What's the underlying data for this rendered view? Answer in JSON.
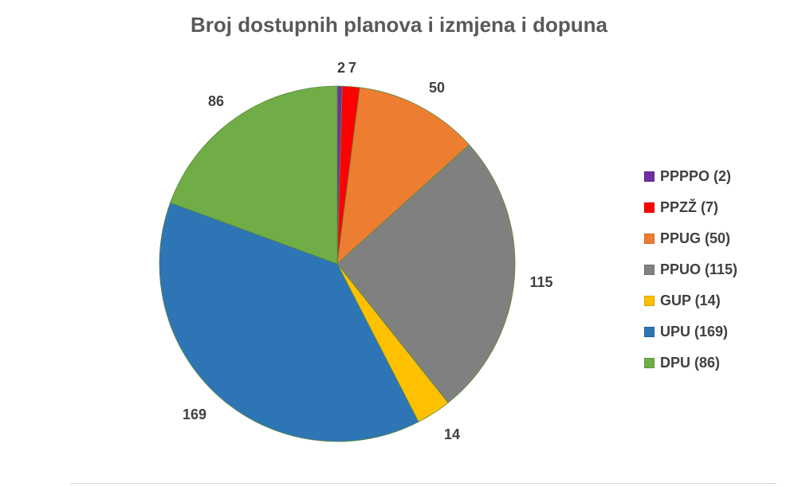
{
  "chart_data": {
    "type": "pie",
    "title": "Broj dostupnih planova i izmjena i dopuna",
    "start_angle_deg": 0,
    "direction": "clockwise",
    "legend_position": "right",
    "slices": [
      {
        "label": "PPPPO",
        "value": 2,
        "data_label": "2",
        "legend_text": "PPPPO (2)",
        "color": "#7030A0"
      },
      {
        "label": "PPZŽ",
        "value": 7,
        "data_label": "7",
        "legend_text": "PPZŽ (7)",
        "color": "#FF0000"
      },
      {
        "label": "PPUG",
        "value": 50,
        "data_label": "50",
        "legend_text": "PPUG (50)",
        "color": "#ED7D31"
      },
      {
        "label": "PPUO",
        "value": 115,
        "data_label": "115",
        "legend_text": "PPUO (115)",
        "color": "#808080"
      },
      {
        "label": "GUP",
        "value": 14,
        "data_label": "14",
        "legend_text": "GUP (14)",
        "color": "#FFC000"
      },
      {
        "label": "UPU",
        "value": 169,
        "data_label": "169",
        "legend_text": "UPU (169)",
        "color": "#2E75B6"
      },
      {
        "label": "DPU",
        "value": 86,
        "data_label": "86",
        "legend_text": "DPU (86)",
        "color": "#70AD47"
      }
    ]
  }
}
